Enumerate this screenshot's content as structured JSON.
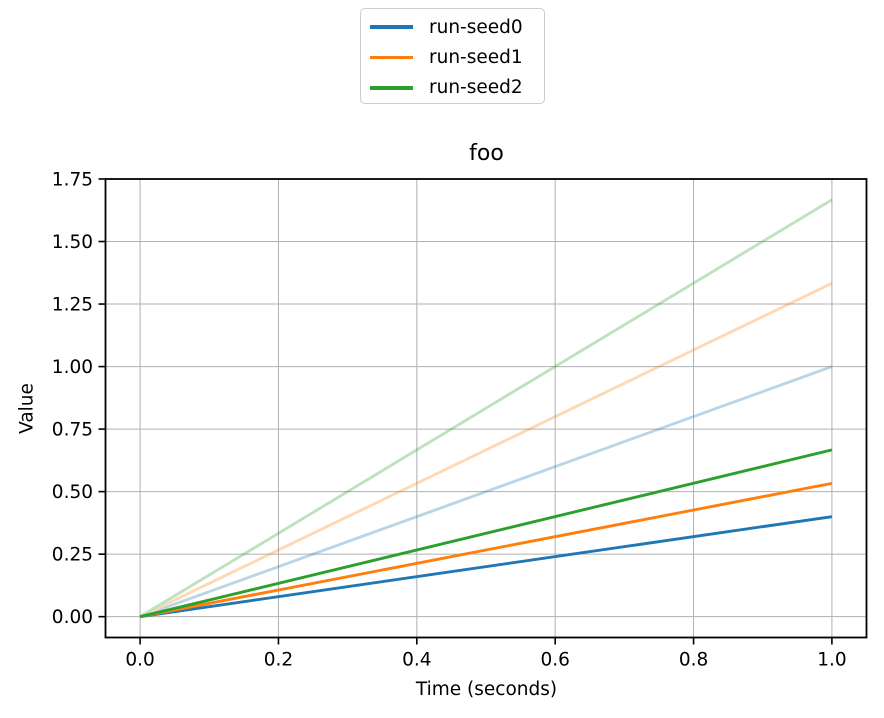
{
  "figure": {
    "background": "#ffffff"
  },
  "chart_data": {
    "type": "line",
    "title": "foo",
    "xlabel": "Time (seconds)",
    "ylabel": "Value",
    "xlim": [
      -0.05,
      1.05
    ],
    "ylim": [
      -0.0833,
      1.75
    ],
    "grid": true,
    "grid_color": "#b0b0b0",
    "spine_color": "#000000",
    "text_color": "#000000",
    "legend_position": "upper center, above axes",
    "raw_line_alpha": 0.3,
    "xticks": {
      "values": [
        0.0,
        0.2,
        0.4,
        0.6,
        0.8,
        1.0
      ],
      "labels": [
        "0.0",
        "0.2",
        "0.4",
        "0.6",
        "0.8",
        "1.0"
      ]
    },
    "yticks": {
      "values": [
        0.0,
        0.25,
        0.5,
        0.75,
        1.0,
        1.25,
        1.5,
        1.75
      ],
      "labels": [
        "0.00",
        "0.25",
        "0.50",
        "0.75",
        "1.00",
        "1.25",
        "1.50",
        "1.75"
      ]
    },
    "series": [
      {
        "name": "run-seed0",
        "color": "#1f77b4",
        "x": [
          0,
          1
        ],
        "smoothed_y": [
          0,
          0.4
        ],
        "raw_y": [
          0,
          1.0
        ]
      },
      {
        "name": "run-seed1",
        "color": "#ff7f0e",
        "x": [
          0,
          1
        ],
        "smoothed_y": [
          0,
          0.533
        ],
        "raw_y": [
          0,
          1.333
        ]
      },
      {
        "name": "run-seed2",
        "color": "#2ca02c",
        "x": [
          0,
          1
        ],
        "smoothed_y": [
          0,
          0.667
        ],
        "raw_y": [
          0,
          1.667
        ]
      }
    ]
  }
}
